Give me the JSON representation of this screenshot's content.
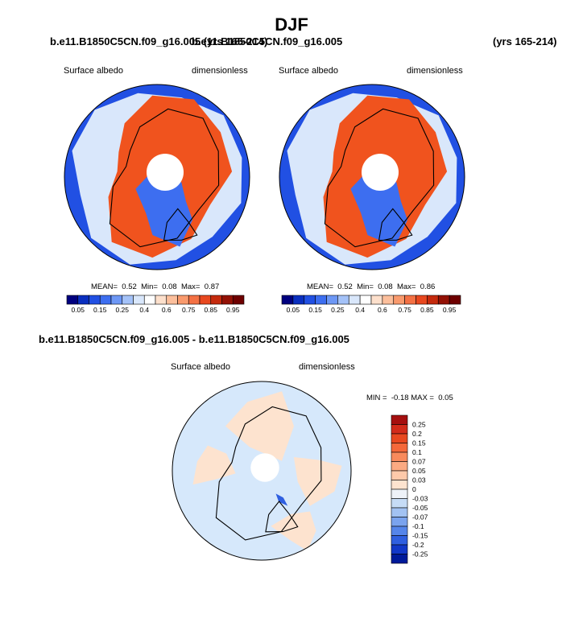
{
  "figure": {
    "season": "DJF",
    "top_left_case": "b.e11.B1850C5CN.f09_g16.005 (yrs 165-214)",
    "top_right_case": "b.e11.B1850C5CN.f09_g16.005",
    "top_right_years": "(yrs 165-214)",
    "diff_title": "b.e11.B1850C5CN.f09_g16.005 - b.e11.B1850C5CN.f09_g16.005"
  },
  "colors": {
    "ocean_dark": "#1f4fd6",
    "ice_orange": "#f0531e",
    "diff_light_blue": "#d6e8fb",
    "diff_peach": "#fde3cf",
    "coast": "#000000"
  },
  "chart_data": [
    {
      "type": "heatmap",
      "projection": "north-polar-stereographic",
      "left_label": "Surface albedo",
      "right_label": "dimensionless",
      "stats": {
        "mean_label": "MEAN=",
        "mean": "0.52",
        "min_label": "Min=",
        "min": "0.08",
        "max_label": "Max=",
        "max": "0.87"
      },
      "colorbar": {
        "orientation": "horizontal",
        "ticks": [
          "0.05",
          "0.15",
          "0.25",
          "0.4",
          "0.6",
          "0.75",
          "0.85",
          "0.95"
        ],
        "colors": [
          "#00007f",
          "#0a2fbf",
          "#2150e3",
          "#3d6ef0",
          "#6d97f5",
          "#a4c2f8",
          "#d9e7fb",
          "#ffffff",
          "#fde0cc",
          "#fcbf9c",
          "#f99a6d",
          "#f47144",
          "#e8481f",
          "#c52a0d",
          "#931105",
          "#6e0000"
        ]
      }
    },
    {
      "type": "heatmap",
      "projection": "north-polar-stereographic",
      "left_label": "Surface albedo",
      "right_label": "dimensionless",
      "stats": {
        "mean_label": "MEAN=",
        "mean": "0.52",
        "min_label": "Min=",
        "min": "0.08",
        "max_label": "Max=",
        "max": "0.86"
      },
      "colorbar": {
        "orientation": "horizontal",
        "ticks": [
          "0.05",
          "0.15",
          "0.25",
          "0.4",
          "0.6",
          "0.75",
          "0.85",
          "0.95"
        ],
        "colors": [
          "#00007f",
          "#0a2fbf",
          "#2150e3",
          "#3d6ef0",
          "#6d97f5",
          "#a4c2f8",
          "#d9e7fb",
          "#ffffff",
          "#fde0cc",
          "#fcbf9c",
          "#f99a6d",
          "#f47144",
          "#e8481f",
          "#c52a0d",
          "#931105",
          "#6e0000"
        ]
      }
    },
    {
      "type": "heatmap",
      "projection": "north-polar-stereographic",
      "left_label": "Surface albedo",
      "right_label": "dimensionless",
      "stats": {
        "min_label": "MIN =",
        "min": "-0.18",
        "max_label": "MAX =",
        "max": "0.05"
      },
      "colorbar": {
        "orientation": "vertical",
        "ticks": [
          "0.25",
          "0.2",
          "0.15",
          "0.1",
          "0.07",
          "0.05",
          "0.03",
          "0",
          "-0.03",
          "-0.05",
          "-0.07",
          "-0.1",
          "-0.15",
          "-0.2",
          "-0.25"
        ],
        "colors": [
          "#a50f0f",
          "#d22b1a",
          "#e8481f",
          "#f4683a",
          "#f88a5c",
          "#fbaa82",
          "#fdc9aa",
          "#fde3cf",
          "#eef2f8",
          "#c6dcf6",
          "#a2c2f2",
          "#7aa3ee",
          "#5585ea",
          "#2f5fe0",
          "#1238c8",
          "#001a9a"
        ]
      }
    }
  ]
}
